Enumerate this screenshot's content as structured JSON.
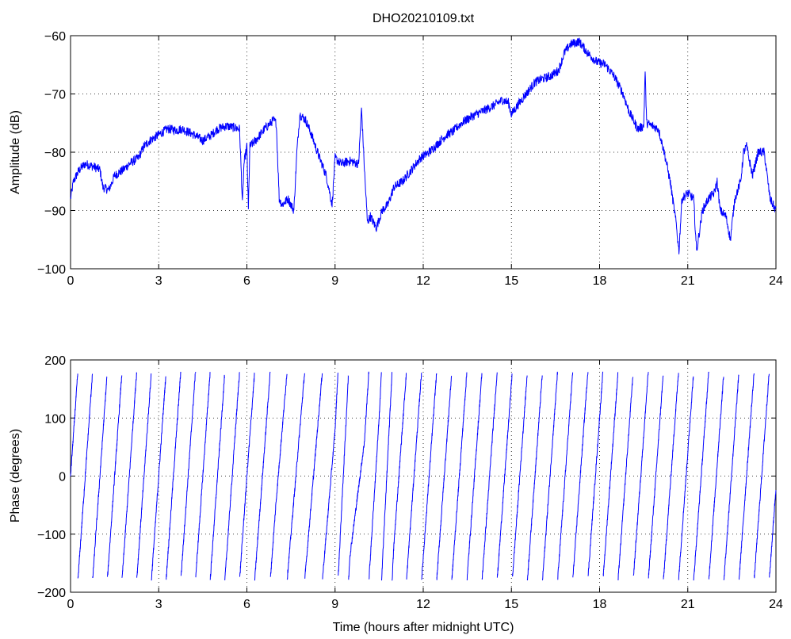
{
  "figure": {
    "line_color": "#0000ff"
  },
  "chart_data": [
    {
      "type": "line",
      "title": "DHO20210109.txt",
      "xlabel": "",
      "ylabel": "Amplitude (dB)",
      "xlim": [
        0,
        24
      ],
      "ylim": [
        -100,
        -60
      ],
      "xticks": [
        "0",
        "3",
        "6",
        "9",
        "12",
        "15",
        "18",
        "21",
        "24"
      ],
      "yticks": [
        "−100",
        "−90",
        "−80",
        "−70",
        "−60"
      ],
      "grid": true,
      "series": [
        {
          "x": [
            0,
            0.1,
            0.3,
            0.5,
            0.8,
            1.0,
            1.1,
            1.3,
            1.5,
            1.8,
            2.0,
            2.3,
            2.5,
            2.7,
            3.0,
            3.3,
            3.6,
            3.8,
            4.2,
            4.5,
            4.8,
            5.0,
            5.3,
            5.6,
            5.75,
            5.85,
            5.9,
            6.0,
            6.05,
            6.1,
            6.3,
            6.6,
            6.9,
            7.0,
            7.1,
            7.2,
            7.4,
            7.6,
            7.7,
            7.8,
            7.9,
            8.0,
            8.2,
            8.4,
            8.7,
            8.9,
            9.0,
            9.2,
            9.5,
            9.8,
            9.9,
            10.0,
            10.1,
            10.2,
            10.4,
            10.6,
            10.8,
            11.0,
            11.3,
            11.6,
            11.9,
            12.2,
            12.5,
            12.8,
            13.0,
            13.3,
            13.6,
            14.0,
            14.4,
            14.7,
            14.9,
            15.0,
            15.2,
            15.5,
            15.8,
            16.0,
            16.3,
            16.6,
            16.8,
            17.0,
            17.3,
            17.6,
            17.9,
            18.2,
            18.5,
            18.8,
            19.0,
            19.2,
            19.3,
            19.5,
            19.55,
            19.6,
            19.8,
            20.0,
            20.2,
            20.4,
            20.6,
            20.7,
            20.8,
            21.0,
            21.2,
            21.3,
            21.5,
            21.7,
            21.9,
            22.0,
            22.1,
            22.3,
            22.45,
            22.6,
            22.8,
            22.9,
            23.0,
            23.2,
            23.4,
            23.6,
            23.8,
            24.0
          ],
          "values": [
            -88,
            -85,
            -83,
            -82,
            -82.5,
            -83,
            -86,
            -86.5,
            -84,
            -83,
            -82,
            -81,
            -79,
            -78,
            -77,
            -76,
            -76.2,
            -76,
            -77,
            -78,
            -77,
            -76,
            -75.5,
            -75.8,
            -76,
            -89,
            -82,
            -79,
            -90,
            -79,
            -78,
            -76,
            -74.5,
            -75,
            -88,
            -89,
            -88,
            -90,
            -80,
            -73.5,
            -74,
            -74.5,
            -77,
            -80,
            -84,
            -89,
            -81,
            -82,
            -81.5,
            -82,
            -72.5,
            -83,
            -92,
            -91,
            -93,
            -90,
            -89,
            -86,
            -85,
            -83,
            -81,
            -80,
            -78.5,
            -77,
            -76.5,
            -75,
            -74,
            -73,
            -72,
            -71,
            -71.5,
            -73.5,
            -72,
            -70,
            -68,
            -67.5,
            -67,
            -66,
            -63,
            -61.5,
            -61,
            -63,
            -64.5,
            -65,
            -67,
            -70,
            -73,
            -75,
            -76,
            -75.5,
            -66,
            -75,
            -75.5,
            -76,
            -80,
            -85,
            -92,
            -97,
            -88,
            -87,
            -88,
            -97,
            -90,
            -88,
            -87,
            -85,
            -90,
            -91,
            -95,
            -88,
            -85,
            -80,
            -79,
            -84,
            -80,
            -80,
            -88,
            -90
          ]
        }
      ]
    },
    {
      "type": "line",
      "title": "",
      "xlabel": "Time (hours after midnight UTC)",
      "ylabel": "Phase (degrees)",
      "xlim": [
        0,
        24
      ],
      "ylim": [
        -200,
        200
      ],
      "xticks": [
        "0",
        "3",
        "6",
        "9",
        "12",
        "15",
        "18",
        "21",
        "24"
      ],
      "yticks": [
        "−200",
        "−100",
        "0",
        "100",
        "200"
      ],
      "grid": true,
      "series": [
        {
          "wrap_range": [
            -180,
            180
          ],
          "x": [
            0,
            0.5,
            1,
            2,
            3,
            4,
            5,
            6,
            7,
            8,
            9,
            9.5,
            10,
            10.5,
            11,
            12,
            13,
            14,
            15,
            16,
            17,
            18,
            19,
            20,
            21,
            22,
            23,
            24
          ],
          "values": [
            0,
            360,
            720,
            1440,
            2160,
            2880,
            3600,
            4320,
            5000,
            5600,
            6200,
            6700,
            6900,
            7300,
            7800,
            8500,
            9200,
            9900,
            10600,
            11300,
            12000,
            12700,
            13400,
            14100,
            14800,
            15500,
            16200,
            16900
          ]
        }
      ]
    }
  ]
}
